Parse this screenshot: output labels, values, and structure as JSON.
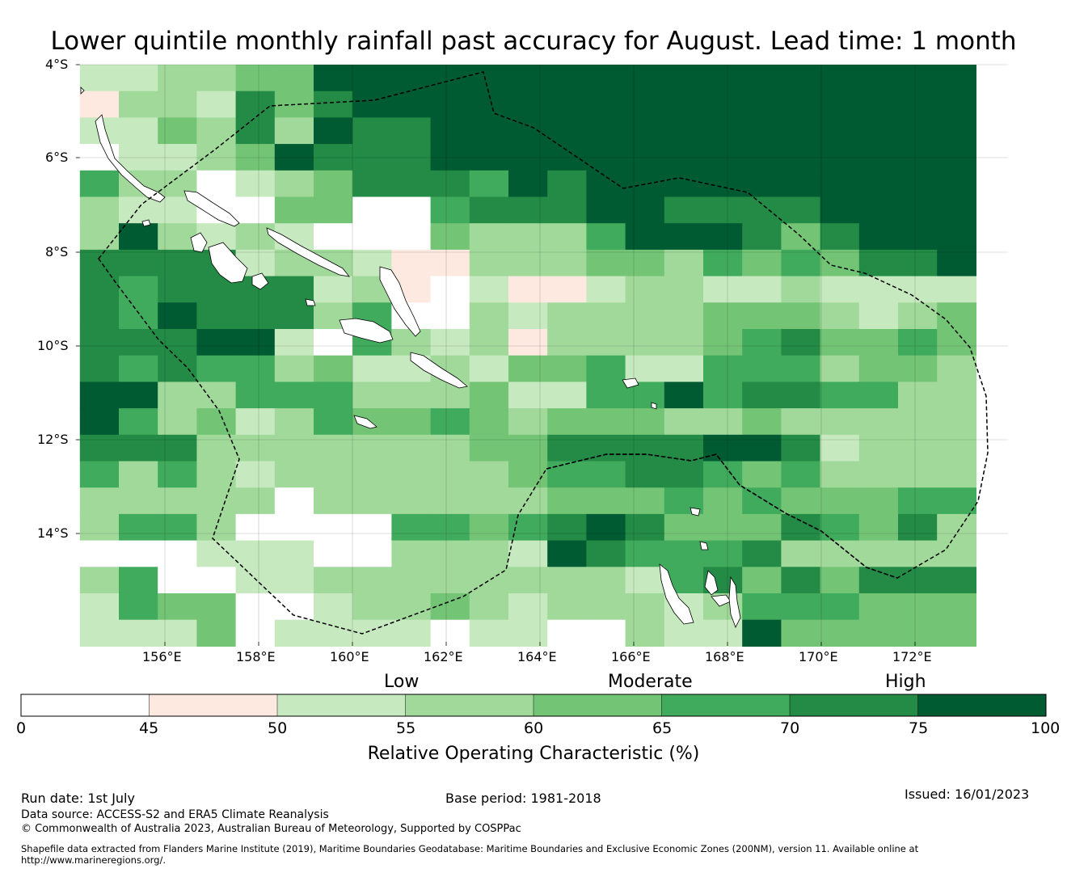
{
  "title": "Lower quintile monthly rainfall past accuracy for August. Lead time: 1 month",
  "map": {
    "lat_labels": [
      "4°S",
      "6°S",
      "8°S",
      "10°S",
      "12°S",
      "14°S"
    ],
    "lon_labels": [
      "156°E",
      "158°E",
      "160°E",
      "162°E",
      "164°E",
      "166°E",
      "168°E",
      "170°E",
      "172°E"
    ],
    "lon_range": [
      154.2,
      174.0
    ],
    "lat_range": [
      -16.3,
      -4.0
    ],
    "grid": true,
    "coastline_color": "#000000",
    "eez_boundary_style": "dashed"
  },
  "colorbar": {
    "category_labels": [
      "Low",
      "Moderate",
      "High"
    ],
    "ticks": [
      "0",
      "45",
      "50",
      "55",
      "60",
      "65",
      "70",
      "75",
      "100"
    ],
    "label": "Relative Operating Characteristic (%)",
    "colors": [
      "#ffffff",
      "#fee9e0",
      "#c7e9c0",
      "#a1d99b",
      "#74c476",
      "#41ab5d",
      "#238b45",
      "#005a32"
    ]
  },
  "footer": {
    "run_date": "Run date: 1st July",
    "base_period": "Base period: 1981-2018",
    "issued": "Issued: 16/01/2023",
    "data_source": "Data source: ACCESS-S2 and ERA5 Climate Reanalysis",
    "copyright": "© Commonwealth of Australia 2023, Australian Bureau of Meteorology, Supported by COSPPac",
    "shapefile_line1": "Shapefile data extracted from Flanders Marine Institute (2019), Maritime Boundaries Geodatabase: Maritime Boundaries and Exclusive Economic Zones (200NM), version 11. Available online at",
    "shapefile_line2": "http://www.marineregions.org/."
  },
  "grid_cells": [
    "bbccggkkkkkkkkkkkkkkkkk",
    "xcdbjgikkkkkkkkkkkkkkkk",
    "bbecjckijkkkkkkkkkkkkkk",
    "abbdekjjjkkkkkkkkkkkkkk",
    "fcdabcejjjfkjkkkkkkkkkk",
    "cbbaaeeaafjjjkkjjjjkkkk",
    "dkdbcbaaaedddfkkkjgjkkk",
    "iiiibcdbxxcccggdfgfgjjk",
    "jfijjjbcxabxxbcdbbdbbbb",
    "jfkiiicfaacbcccdeeedbde",
    "jijkkbafcbdxccddgfiegfe",
    "jfjffcebbdbeefbbfffcggd",
    "kkcdfffdcdebbffkfjjffdc",
    "kfdgbdfegfedeggccgdcccd",
    "iiiddddcccggijjjkkjbdcc",
    "fdfdbcccccdeffjjfefddcc",
    "cccddacdcccdeeefgfeeeff",
    "dffdaaaaffefjkjgggjfgjd",
    "aaabbbaaccdbhjfffjcccdd",
    "cfaabbcddcdccdbfjgigjjj",
    "bfeeaabccgdbcdcbcfffeeg",
    "bbbeabbbbabbaacbbkgeeee"
  ]
}
